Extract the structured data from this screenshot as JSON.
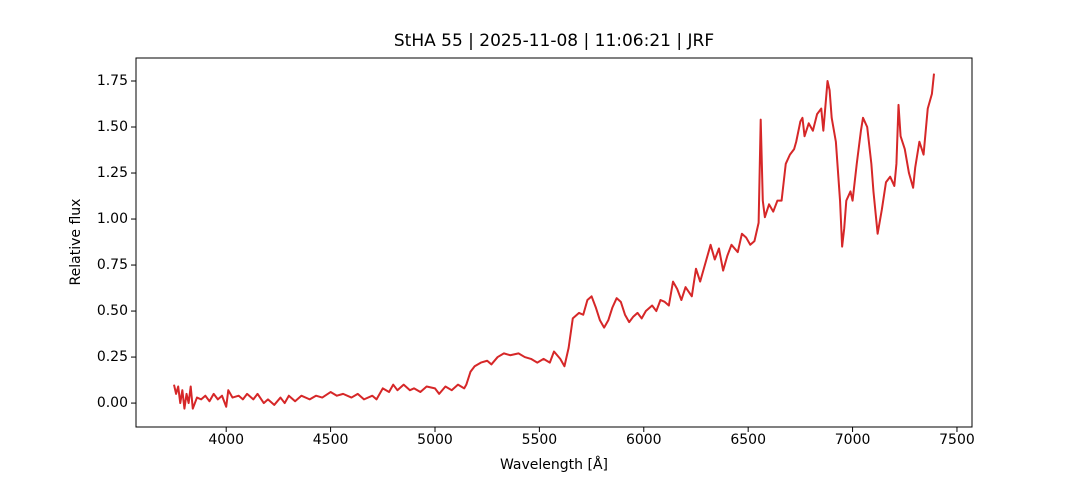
{
  "chart_data": {
    "type": "line",
    "title": "StHA 55 | 2025-11-08 | 11:06:21 | JRF",
    "x_label": "Wavelength [Å]",
    "y_label": "Relative flux",
    "xlim": [
      3568,
      7572
    ],
    "ylim": [
      -0.13,
      1.875
    ],
    "xticks": [
      4000,
      4500,
      5000,
      5500,
      6000,
      6500,
      7000,
      7500
    ],
    "yticks": [
      {
        "value": 0,
        "label": "0.00"
      },
      {
        "value": 0.25,
        "label": "0.25"
      },
      {
        "value": 0.5,
        "label": "0.50"
      },
      {
        "value": 0.75,
        "label": "0.75"
      },
      {
        "value": 1,
        "label": "1.00"
      },
      {
        "value": 1.25,
        "label": "1.25"
      },
      {
        "value": 1.5,
        "label": "1.50"
      },
      {
        "value": 1.75,
        "label": "1.75"
      }
    ],
    "grid": false,
    "series": [
      {
        "color": "#d62728",
        "x": [
          3750,
          3760,
          3770,
          3780,
          3790,
          3800,
          3810,
          3820,
          3830,
          3840,
          3860,
          3880,
          3900,
          3920,
          3940,
          3960,
          3980,
          4000,
          4010,
          4030,
          4060,
          4080,
          4100,
          4130,
          4150,
          4180,
          4200,
          4230,
          4260,
          4280,
          4300,
          4330,
          4360,
          4400,
          4430,
          4460,
          4500,
          4530,
          4560,
          4600,
          4630,
          4660,
          4700,
          4720,
          4750,
          4780,
          4800,
          4820,
          4850,
          4880,
          4900,
          4930,
          4960,
          5000,
          5020,
          5050,
          5080,
          5110,
          5140,
          5150,
          5170,
          5190,
          5220,
          5250,
          5270,
          5300,
          5330,
          5360,
          5400,
          5430,
          5460,
          5490,
          5520,
          5550,
          5570,
          5600,
          5620,
          5640,
          5660,
          5690,
          5710,
          5730,
          5750,
          5770,
          5790,
          5810,
          5830,
          5850,
          5870,
          5890,
          5910,
          5930,
          5950,
          5970,
          5990,
          6010,
          6040,
          6060,
          6080,
          6100,
          6120,
          6140,
          6160,
          6180,
          6200,
          6230,
          6250,
          6270,
          6300,
          6320,
          6340,
          6360,
          6380,
          6400,
          6420,
          6450,
          6470,
          6490,
          6510,
          6530,
          6550,
          6560,
          6570,
          6580,
          6600,
          6620,
          6640,
          6660,
          6680,
          6700,
          6720,
          6730,
          6750,
          6760,
          6770,
          6790,
          6810,
          6830,
          6850,
          6860,
          6880,
          6890,
          6900,
          6920,
          6940,
          6950,
          6960,
          6970,
          6990,
          7000,
          7020,
          7040,
          7050,
          7070,
          7090,
          7100,
          7120,
          7140,
          7160,
          7180,
          7200,
          7210,
          7220,
          7230,
          7250,
          7270,
          7290,
          7300,
          7320,
          7340,
          7360,
          7380,
          7390
        ],
        "values": [
          0.1,
          0.05,
          0.09,
          0.0,
          0.07,
          -0.03,
          0.05,
          0.0,
          0.09,
          -0.03,
          0.03,
          0.02,
          0.04,
          0.01,
          0.05,
          0.02,
          0.04,
          -0.02,
          0.07,
          0.03,
          0.04,
          0.02,
          0.05,
          0.02,
          0.05,
          0.0,
          0.02,
          -0.01,
          0.03,
          0.0,
          0.04,
          0.01,
          0.04,
          0.02,
          0.04,
          0.03,
          0.06,
          0.04,
          0.05,
          0.03,
          0.05,
          0.02,
          0.04,
          0.02,
          0.08,
          0.06,
          0.1,
          0.07,
          0.1,
          0.07,
          0.08,
          0.06,
          0.09,
          0.08,
          0.05,
          0.09,
          0.07,
          0.1,
          0.08,
          0.1,
          0.17,
          0.2,
          0.22,
          0.23,
          0.21,
          0.25,
          0.27,
          0.26,
          0.27,
          0.25,
          0.24,
          0.22,
          0.24,
          0.22,
          0.28,
          0.24,
          0.2,
          0.3,
          0.46,
          0.49,
          0.48,
          0.56,
          0.58,
          0.52,
          0.45,
          0.41,
          0.45,
          0.52,
          0.57,
          0.55,
          0.48,
          0.44,
          0.47,
          0.49,
          0.46,
          0.5,
          0.53,
          0.5,
          0.56,
          0.55,
          0.53,
          0.66,
          0.62,
          0.56,
          0.63,
          0.58,
          0.73,
          0.66,
          0.78,
          0.86,
          0.78,
          0.84,
          0.72,
          0.8,
          0.86,
          0.82,
          0.92,
          0.9,
          0.86,
          0.88,
          0.98,
          1.54,
          1.1,
          1.01,
          1.08,
          1.04,
          1.1,
          1.1,
          1.3,
          1.35,
          1.38,
          1.42,
          1.53,
          1.55,
          1.45,
          1.52,
          1.48,
          1.57,
          1.6,
          1.48,
          1.75,
          1.7,
          1.55,
          1.42,
          1.1,
          0.85,
          0.95,
          1.1,
          1.15,
          1.1,
          1.3,
          1.48,
          1.55,
          1.5,
          1.3,
          1.15,
          0.92,
          1.05,
          1.2,
          1.23,
          1.18,
          1.3,
          1.62,
          1.45,
          1.38,
          1.25,
          1.17,
          1.28,
          1.42,
          1.35,
          1.6,
          1.68,
          1.79
        ]
      }
    ]
  }
}
